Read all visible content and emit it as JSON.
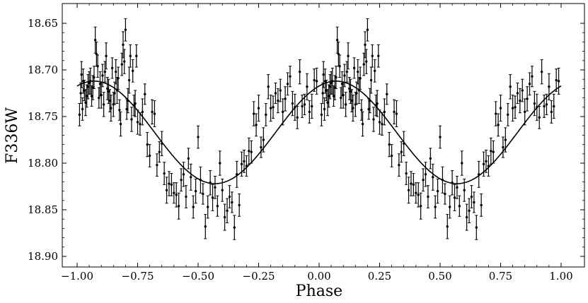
{
  "chart_data": {
    "type": "scatter",
    "xlabel": "Phase",
    "ylabel": "F336W",
    "xlim": [
      -1.05,
      1.05
    ],
    "ylim": [
      18.62,
      18.91
    ],
    "y_inverted": true,
    "grid": false,
    "legend": "none",
    "x_ticks": [
      -1.0,
      -0.75,
      -0.5,
      -0.25,
      0.0,
      0.25,
      0.5,
      0.75,
      1.0
    ],
    "x_tick_labels": [
      "−1.00",
      "−0.75",
      "−0.50",
      "−0.25",
      "0.00",
      "0.25",
      "0.50",
      "0.75",
      "1.00"
    ],
    "y_ticks": [
      18.65,
      18.7,
      18.75,
      18.8,
      18.85,
      18.9
    ],
    "y_tick_labels": [
      "18.65",
      "18.70",
      "18.75",
      "18.80",
      "18.85",
      "18.90"
    ],
    "model_curve": {
      "form": "sinusoid",
      "mean": 18.767,
      "amplitude": 0.055,
      "phase_of_maximum_brightness": 0.07,
      "period_in_phase": 1.0
    },
    "series": [
      {
        "marker": "point-with-errorbar",
        "color": "#000000",
        "x": [
          -0.99,
          -0.985,
          -0.982,
          -0.978,
          -0.975,
          -0.97,
          -0.965,
          -0.96,
          -0.955,
          -0.95,
          -0.945,
          -0.94,
          -0.935,
          -0.93,
          -0.925,
          -0.92,
          -0.915,
          -0.91,
          -0.905,
          -0.9,
          -0.895,
          -0.89,
          -0.885,
          -0.88,
          -0.875,
          -0.87,
          -0.865,
          -0.86,
          -0.855,
          -0.85,
          -0.845,
          -0.84,
          -0.835,
          -0.83,
          -0.825,
          -0.82,
          -0.815,
          -0.81,
          -0.805,
          -0.8,
          -0.795,
          -0.79,
          -0.785,
          -0.78,
          -0.775,
          -0.77,
          -0.765,
          -0.76,
          -0.755,
          -0.75,
          -0.74,
          -0.73,
          -0.72,
          -0.71,
          -0.7,
          -0.69,
          -0.68,
          -0.67,
          -0.66,
          -0.65,
          -0.64,
          -0.63,
          -0.62,
          -0.61,
          -0.6,
          -0.59,
          -0.58,
          -0.57,
          -0.56,
          -0.55,
          -0.54,
          -0.53,
          -0.52,
          -0.51,
          -0.5,
          -0.49,
          -0.48,
          -0.47,
          -0.46,
          -0.45,
          -0.44,
          -0.43,
          -0.42,
          -0.41,
          -0.4,
          -0.39,
          -0.38,
          -0.37,
          -0.36,
          -0.35,
          -0.34,
          -0.33,
          -0.32,
          -0.31,
          -0.3,
          -0.29,
          -0.28,
          -0.27,
          -0.26,
          -0.25,
          -0.24,
          -0.23,
          -0.22,
          -0.21,
          -0.2,
          -0.19,
          -0.18,
          -0.17,
          -0.16,
          -0.15,
          -0.14,
          -0.13,
          -0.12,
          -0.11,
          -0.1,
          -0.09,
          -0.08,
          -0.07,
          -0.06,
          -0.05,
          -0.04,
          -0.03,
          -0.02,
          -0.01
        ],
        "y": [
          18.748,
          18.725,
          18.705,
          18.742,
          18.712,
          18.722,
          18.735,
          18.728,
          18.718,
          18.714,
          18.712,
          18.728,
          18.719,
          18.708,
          18.668,
          18.683,
          18.696,
          18.73,
          18.715,
          18.727,
          18.706,
          18.737,
          18.702,
          18.685,
          18.72,
          18.723,
          18.733,
          18.741,
          18.698,
          18.737,
          18.725,
          18.702,
          18.722,
          18.709,
          18.743,
          18.758,
          18.694,
          18.673,
          18.691,
          18.657,
          18.742,
          18.733,
          18.711,
          18.685,
          18.753,
          18.701,
          18.738,
          18.736,
          18.685,
          18.756,
          18.758,
          18.745,
          18.726,
          18.78,
          18.792,
          18.745,
          18.747,
          18.802,
          18.788,
          18.779,
          18.811,
          18.829,
          18.822,
          18.823,
          18.832,
          18.834,
          18.846,
          18.818,
          18.812,
          18.836,
          18.795,
          18.815,
          18.847,
          18.83,
          18.772,
          18.818,
          18.833,
          18.868,
          18.847,
          18.821,
          18.837,
          18.826,
          18.846,
          18.8,
          18.829,
          18.858,
          18.851,
          18.836,
          18.842,
          18.869,
          18.812,
          18.845,
          18.801,
          18.798,
          18.803,
          18.787,
          18.788,
          18.747,
          18.759,
          18.741,
          18.783,
          18.775,
          18.748,
          18.718,
          18.741,
          18.74,
          18.725,
          18.733,
          18.722,
          18.745,
          18.731,
          18.715,
          18.707,
          18.736,
          18.74,
          18.751,
          18.702,
          18.739,
          18.737,
          18.718,
          18.745,
          18.739,
          18.711,
          18.712
        ],
        "err": [
          0.012,
          0.011,
          0.014,
          0.012,
          0.013,
          0.011,
          0.014,
          0.012,
          0.013,
          0.012,
          0.014,
          0.011,
          0.013,
          0.012,
          0.014,
          0.013,
          0.012,
          0.011,
          0.013,
          0.014,
          0.012,
          0.013,
          0.011,
          0.014,
          0.012,
          0.013,
          0.012,
          0.014,
          0.011,
          0.013,
          0.012,
          0.013,
          0.014,
          0.012,
          0.011,
          0.013,
          0.012,
          0.014,
          0.013,
          0.012,
          0.011,
          0.013,
          0.014,
          0.012,
          0.013,
          0.012,
          0.011,
          0.014,
          0.012,
          0.013,
          0.012,
          0.014,
          0.011,
          0.013,
          0.012,
          0.013,
          0.014,
          0.012,
          0.011,
          0.013,
          0.012,
          0.014,
          0.013,
          0.012,
          0.011,
          0.013,
          0.014,
          0.012,
          0.013,
          0.012,
          0.011,
          0.014,
          0.012,
          0.013,
          0.012,
          0.014,
          0.011,
          0.013,
          0.012,
          0.013,
          0.014,
          0.012,
          0.011,
          0.013,
          0.012,
          0.014,
          0.013,
          0.012,
          0.011,
          0.013,
          0.014,
          0.012,
          0.013,
          0.012,
          0.011,
          0.014,
          0.012,
          0.013,
          0.012,
          0.014,
          0.011,
          0.013,
          0.012,
          0.013,
          0.014,
          0.012,
          0.011,
          0.013,
          0.012,
          0.014,
          0.013,
          0.012,
          0.011,
          0.013,
          0.014,
          0.012,
          0.013,
          0.012,
          0.011,
          0.014,
          0.012,
          0.013,
          0.012,
          0.014
        ]
      }
    ]
  }
}
